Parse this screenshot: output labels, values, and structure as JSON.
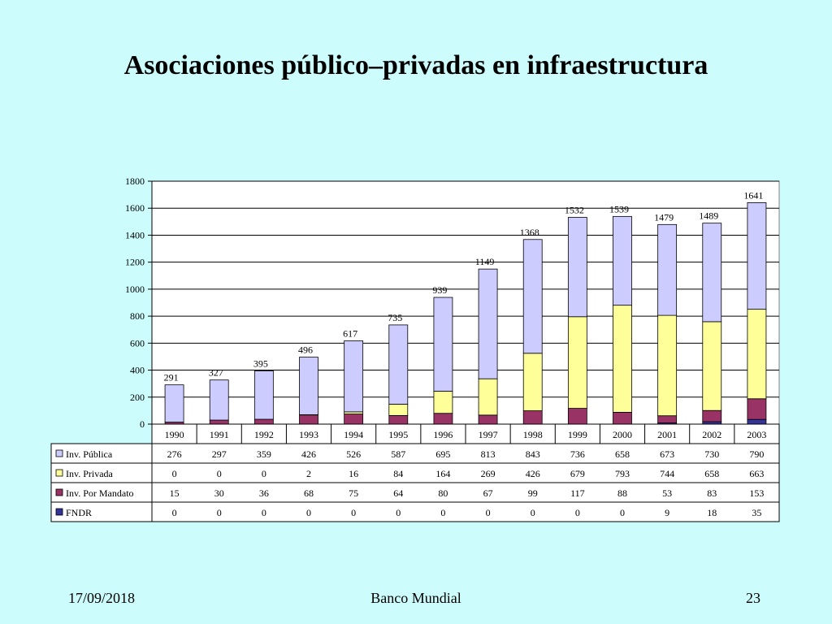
{
  "slide": {
    "title": "Asociaciones público–privadas en infraestructura",
    "footer_date": "17/09/2018",
    "footer_source": "Banco Mundial",
    "page_number": "23"
  },
  "chart_data": {
    "type": "bar",
    "stacked": true,
    "categories": [
      "1990",
      "1991",
      "1992",
      "1993",
      "1994",
      "1995",
      "1996",
      "1997",
      "1998",
      "1999",
      "2000",
      "2001",
      "2002",
      "2003"
    ],
    "series": [
      {
        "name": "FNDR",
        "color": "#333399",
        "values": [
          0,
          0,
          0,
          0,
          0,
          0,
          0,
          0,
          0,
          0,
          0,
          9,
          18,
          35
        ]
      },
      {
        "name": "Inv. Por Mandato",
        "color": "#993366",
        "values": [
          15,
          30,
          36,
          68,
          75,
          64,
          80,
          67,
          99,
          117,
          88,
          53,
          83,
          153
        ]
      },
      {
        "name": "Inv. Privada",
        "color": "#ffff99",
        "values": [
          0,
          0,
          0,
          2,
          16,
          84,
          164,
          269,
          426,
          679,
          793,
          744,
          658,
          663
        ]
      },
      {
        "name": "Inv. Pública",
        "color": "#ccccff",
        "values": [
          276,
          297,
          359,
          426,
          526,
          587,
          695,
          813,
          843,
          736,
          658,
          673,
          730,
          790
        ]
      }
    ],
    "totals": [
      291,
      327,
      395,
      496,
      617,
      735,
      939,
      1149,
      1368,
      1532,
      1539,
      1479,
      1489,
      1641
    ],
    "ylim": [
      0,
      1800
    ],
    "yticks": [
      "0",
      "200",
      "400",
      "600",
      "800",
      "1000",
      "1200",
      "1400",
      "1600",
      "1800"
    ],
    "grid": true,
    "legend": "data-table",
    "table_row_order": [
      "Inv. Pública",
      "Inv. Privada",
      "Inv. Por Mandato",
      "FNDR"
    ],
    "xlabel": "",
    "ylabel": ""
  }
}
